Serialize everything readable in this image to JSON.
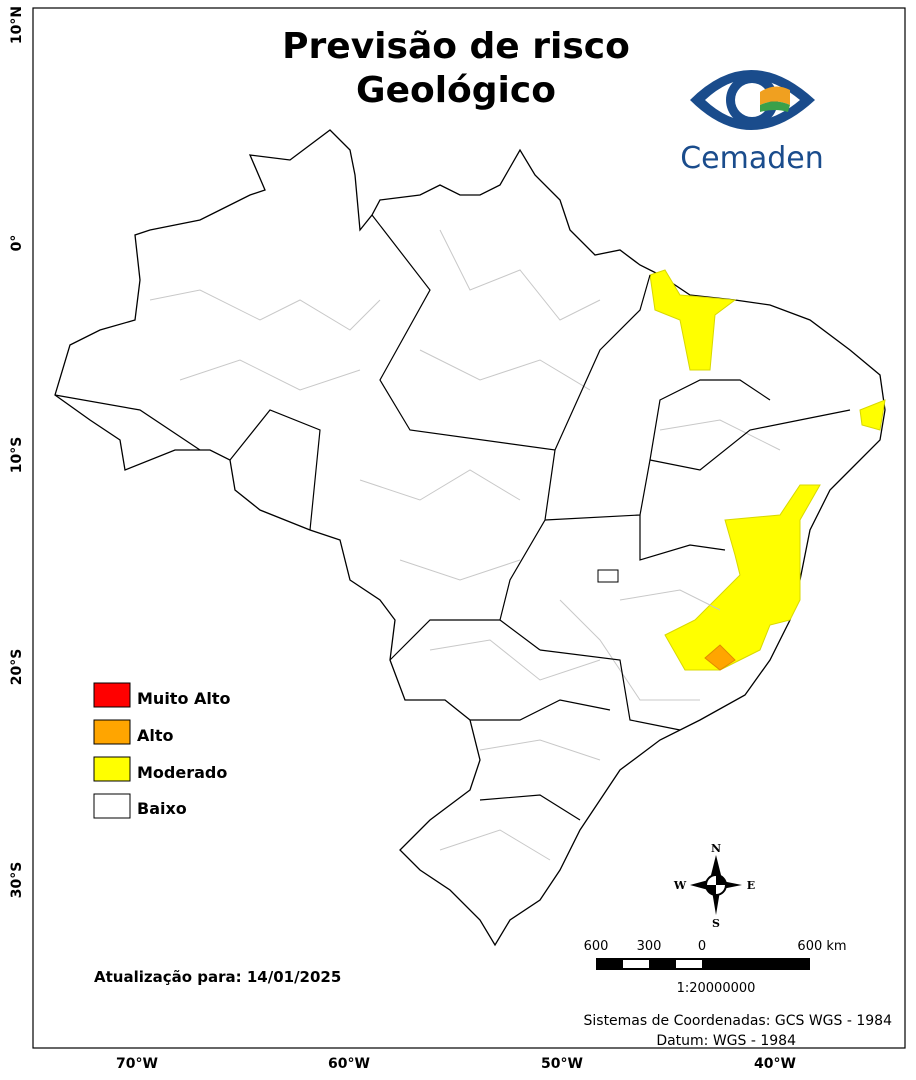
{
  "title": [
    "Previsão de risco",
    "Geológico"
  ],
  "logo": "Cemaden",
  "axes": {
    "y_labels": [
      "10°N",
      "0°",
      "10°S",
      "20°S",
      "30°S"
    ],
    "x_labels": [
      "70°W",
      "60°W",
      "50°W",
      "40°W"
    ]
  },
  "legend": [
    {
      "label": "Muito Alto",
      "color": "#ff0000"
    },
    {
      "label": "Alto",
      "color": "#ffa500"
    },
    {
      "label": "Moderado",
      "color": "#ffff00"
    },
    {
      "label": "Baixo",
      "color": "#ffffff"
    }
  ],
  "update": "Atualização para: 14/01/2025",
  "compass": {
    "n": "N",
    "s": "S",
    "e": "E",
    "w": "W"
  },
  "scale": {
    "labels": [
      "600",
      "300",
      "0",
      "600 km"
    ],
    "ratio": "1:20000000"
  },
  "footer": [
    "Sistemas de Coordenadas: GCS WGS - 1984",
    "Datum: WGS - 1984"
  ]
}
